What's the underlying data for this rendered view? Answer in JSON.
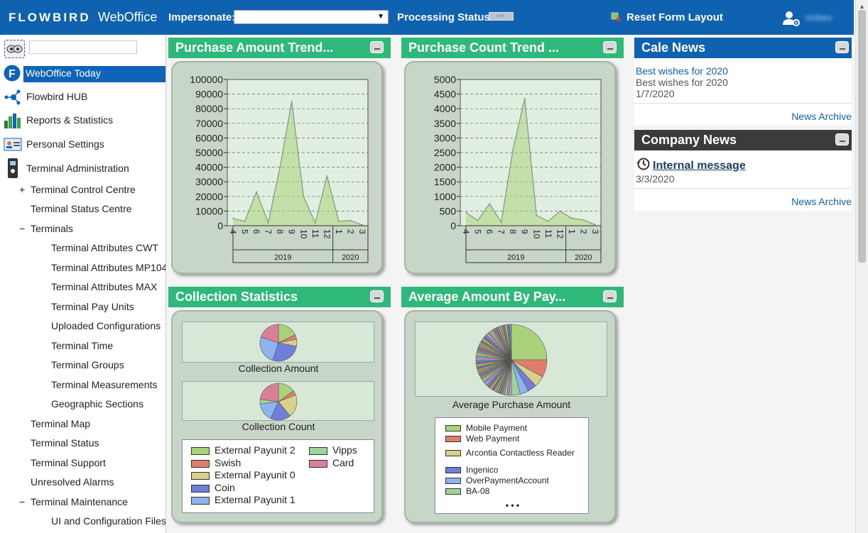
{
  "header": {
    "brand": "FLOWBIRD",
    "app_name": "WebOffice",
    "impersonate_label": "Impersonate:",
    "impersonate_value": "",
    "processing_label": "Processing Status",
    "reset_label": "Reset Form Layout",
    "username": "vinbev"
  },
  "sidebar": {
    "search_placeholder": "",
    "items": [
      {
        "label": "WebOffice Today",
        "icon": "flowbird-f-icon",
        "selected": true
      },
      {
        "label": "Flowbird HUB",
        "icon": "hub-icon"
      },
      {
        "label": "Reports & Statistics",
        "icon": "bar-chart-icon"
      },
      {
        "label": "Personal Settings",
        "icon": "id-card-icon"
      },
      {
        "label": "Terminal Administration",
        "icon": "terminal-icon"
      },
      {
        "label": "Terminal Control Centre",
        "prefix": "+"
      },
      {
        "label": "Terminal Status Centre"
      },
      {
        "label": "Terminals",
        "prefix": "−"
      },
      {
        "label": "Terminal Attributes CWT"
      },
      {
        "label": "Terminal Attributes MP104"
      },
      {
        "label": "Terminal Attributes MAX"
      },
      {
        "label": "Terminal Pay Units"
      },
      {
        "label": "Uploaded Configurations"
      },
      {
        "label": "Terminal Time"
      },
      {
        "label": "Terminal Groups"
      },
      {
        "label": "Terminal Measurements"
      },
      {
        "label": "Geographic Sections"
      },
      {
        "label": "Terminal Map"
      },
      {
        "label": "Terminal Status"
      },
      {
        "label": "Terminal Support"
      },
      {
        "label": "Unresolved Alarms"
      },
      {
        "label": "Terminal Maintenance",
        "prefix": "−"
      },
      {
        "label": "UI and Configuration Files"
      }
    ]
  },
  "panels": {
    "purchase_amount": {
      "title": "Purchase Amount Trend..."
    },
    "purchase_count": {
      "title": "Purchase Count Trend ..."
    },
    "collection": {
      "title": "Collection Statistics",
      "pie1_label": "Collection Amount",
      "pie2_label": "Collection Count"
    },
    "avg_amount": {
      "title": "Average Amount By Pay...",
      "pie_label": "Average Purchase Amount",
      "more": "• • •"
    }
  },
  "news": {
    "cale": {
      "title": "Cale News",
      "link": "Best wishes for 2020",
      "text": "Best wishes for 2020",
      "date": "1/7/2020",
      "archive": "News Archive"
    },
    "company": {
      "title": "Company News",
      "link": "Internal message",
      "date": "3/3/2020",
      "archive": "News Archive"
    }
  },
  "colors": {
    "header_blue": "#0f62b0",
    "panel_green": "#2eb87a",
    "dark_header": "#3b3b3b"
  },
  "chart_data": [
    {
      "type": "area",
      "title": "Purchase Amount Trend...",
      "x": [
        "4",
        "5",
        "6",
        "7",
        "8",
        "9",
        "10",
        "11",
        "12",
        "1",
        "2",
        "3"
      ],
      "groups": [
        {
          "label": "2019",
          "span": 9
        },
        {
          "label": "2020",
          "span": 3
        }
      ],
      "values": [
        5000,
        3000,
        23000,
        2000,
        40000,
        85000,
        20000,
        2000,
        34000,
        3000,
        3500,
        500
      ],
      "ylim": [
        0,
        100000
      ],
      "yticks": [
        0,
        10000,
        20000,
        30000,
        40000,
        50000,
        60000,
        70000,
        80000,
        90000,
        100000
      ],
      "grid": true
    },
    {
      "type": "area",
      "title": "Purchase Count Trend ...",
      "x": [
        "4",
        "5",
        "6",
        "7",
        "8",
        "9",
        "10",
        "11",
        "12",
        "1",
        "2",
        "3"
      ],
      "groups": [
        {
          "label": "2019",
          "span": 9
        },
        {
          "label": "2020",
          "span": 3
        }
      ],
      "values": [
        450,
        180,
        750,
        120,
        2600,
        4350,
        350,
        150,
        500,
        250,
        200,
        30
      ],
      "ylim": [
        0,
        5000
      ],
      "yticks": [
        0,
        500,
        1000,
        1500,
        2000,
        2500,
        3000,
        3500,
        4000,
        4500,
        5000
      ],
      "grid": true
    },
    {
      "type": "pie",
      "title": "Collection Amount",
      "series": [
        {
          "name": "External Payunit 2",
          "values": [
            0.18
          ]
        },
        {
          "name": "Swish",
          "values": [
            0.04
          ]
        },
        {
          "name": "External Payunit 0",
          "values": [
            0.06
          ]
        },
        {
          "name": "Coin",
          "values": [
            0.27
          ]
        },
        {
          "name": "External Payunit 1",
          "values": [
            0.25
          ]
        },
        {
          "name": "Card",
          "values": [
            0.2
          ]
        }
      ]
    },
    {
      "type": "pie",
      "title": "Collection Count",
      "series": [
        {
          "name": "External Payunit 2",
          "values": [
            0.15
          ]
        },
        {
          "name": "Swish",
          "values": [
            0.04
          ]
        },
        {
          "name": "External Payunit 0",
          "values": [
            0.2
          ]
        },
        {
          "name": "Coin",
          "values": [
            0.18
          ]
        },
        {
          "name": "External Payunit 1",
          "values": [
            0.16
          ]
        },
        {
          "name": "Vipps",
          "values": [
            0.04
          ]
        },
        {
          "name": "Card",
          "values": [
            0.23
          ]
        }
      ]
    },
    {
      "type": "pie",
      "title": "Average Purchase Amount",
      "series": [
        {
          "name": "Mobile Payment",
          "values": [
            0.25
          ]
        },
        {
          "name": "Web Payment",
          "values": [
            0.08
          ]
        },
        {
          "name": "Arcontia Contactless Reader",
          "values": [
            0.05
          ]
        },
        {
          "name": "Ingenico",
          "values": [
            0.04
          ]
        },
        {
          "name": "OverPaymentAccount",
          "values": [
            0.04
          ]
        },
        {
          "name": "BA-08",
          "values": [
            0.04
          ]
        }
      ]
    }
  ],
  "legends": {
    "collection": [
      {
        "name": "External Payunit 2",
        "color": "#a9d37a"
      },
      {
        "name": "Swish",
        "color": "#e07d6d"
      },
      {
        "name": "External Payunit 0",
        "color": "#d9d08a"
      },
      {
        "name": "Coin",
        "color": "#6f7fd9"
      },
      {
        "name": "External Payunit 1",
        "color": "#8fb3ee"
      },
      {
        "name": "Vipps",
        "color": "#9ed39a"
      },
      {
        "name": "Card",
        "color": "#d97f9a"
      }
    ],
    "avg": [
      {
        "name": "Mobile Payment",
        "color": "#a9d37a"
      },
      {
        "name": "Web Payment",
        "color": "#e07d6d"
      },
      {
        "name": "Arcontia Contactless Reader",
        "color": "#d9d08a"
      },
      {
        "name": "Ingenico",
        "color": "#6f7fd9"
      },
      {
        "name": "OverPaymentAccount",
        "color": "#8fb3ee"
      },
      {
        "name": "BA-08",
        "color": "#9ed39a"
      }
    ]
  }
}
